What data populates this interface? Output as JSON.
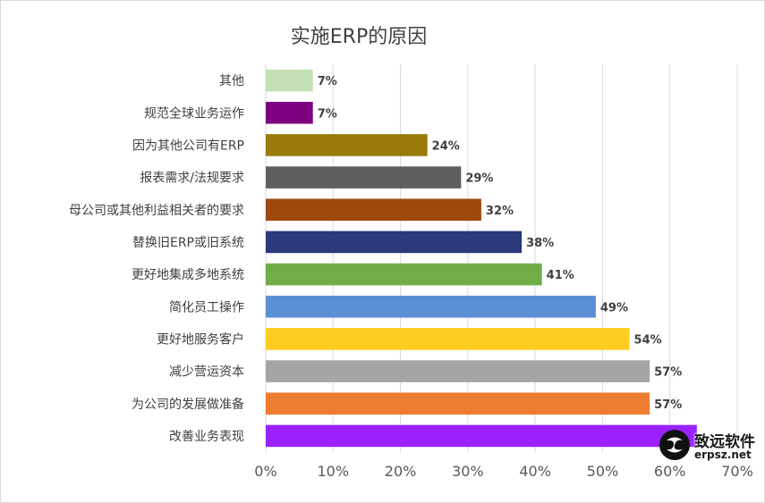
{
  "chart_data": {
    "type": "bar",
    "orientation": "horizontal",
    "title": "实施ERP的原因",
    "categories": [
      "其他",
      "规范全球业务运作",
      "因为其他公司有ERP",
      "报表需求/法规要求",
      "母公司或其他利益相关者的要求",
      "替换旧ERP或旧系统",
      "更好地集成多地系统",
      "简化员工操作",
      "更好地服务客户",
      "减少营运资本",
      "为公司的发展做准备",
      "改善业务表现"
    ],
    "values": [
      7,
      7,
      24,
      29,
      32,
      38,
      41,
      49,
      54,
      57,
      57,
      64
    ],
    "value_labels": [
      "7%",
      "7%",
      "24%",
      "29%",
      "32%",
      "38%",
      "41%",
      "49%",
      "54%",
      "57%",
      "57%",
      ""
    ],
    "colors": [
      "#c5e0b4",
      "#7f007f",
      "#9a7b0a",
      "#5f5f5f",
      "#9e480e",
      "#2a3a7a",
      "#70ad47",
      "#5b8fd4",
      "#ffcc22",
      "#a5a5a5",
      "#ed7d31",
      "#9b22ff"
    ],
    "xlim": [
      0,
      70
    ],
    "xticks": [
      0,
      10,
      20,
      30,
      40,
      50,
      60,
      70
    ],
    "xtick_labels": [
      "0%",
      "10%",
      "20%",
      "30%",
      "40%",
      "50%",
      "60%",
      "70%"
    ],
    "grid": true,
    "xlabel": "",
    "ylabel": ""
  },
  "watermark": {
    "brand": "致远软件",
    "url": "erpsz.net"
  }
}
